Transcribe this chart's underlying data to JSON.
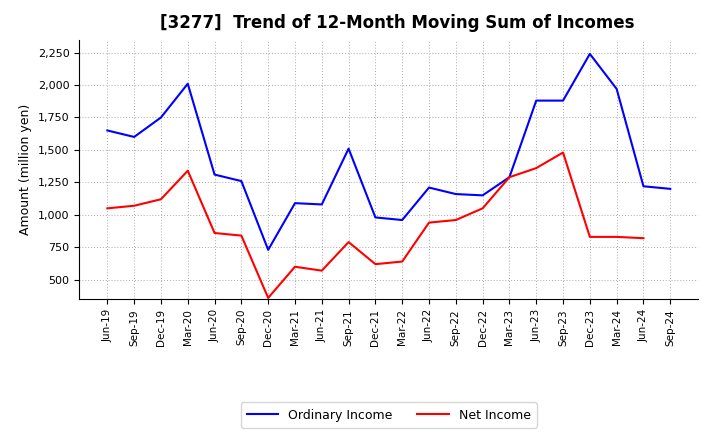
{
  "title": "[3277]  Trend of 12-Month Moving Sum of Incomes",
  "ylabel": "Amount (million yen)",
  "ylim": [
    350,
    2350
  ],
  "yticks": [
    500,
    750,
    1000,
    1250,
    1500,
    1750,
    2000,
    2250
  ],
  "labels": [
    "Jun-19",
    "Sep-19",
    "Dec-19",
    "Mar-20",
    "Jun-20",
    "Sep-20",
    "Dec-20",
    "Mar-21",
    "Jun-21",
    "Sep-21",
    "Dec-21",
    "Mar-22",
    "Jun-22",
    "Sep-22",
    "Dec-22",
    "Mar-23",
    "Jun-23",
    "Sep-23",
    "Dec-23",
    "Mar-24",
    "Jun-24",
    "Sep-24"
  ],
  "ordinary_income": [
    1650,
    1600,
    1750,
    2010,
    1310,
    1260,
    730,
    1090,
    1080,
    1510,
    980,
    960,
    1210,
    1160,
    1150,
    1290,
    1880,
    1880,
    2240,
    1970,
    1220,
    1200
  ],
  "net_income": [
    1050,
    1070,
    1120,
    1340,
    860,
    840,
    360,
    600,
    570,
    790,
    620,
    640,
    940,
    960,
    1050,
    1290,
    1360,
    1480,
    830,
    830,
    820,
    null
  ],
  "ordinary_color": "#0000FF",
  "net_color": "#FF0000",
  "background_color": "#FFFFFF",
  "grid_color": "#AAAAAA",
  "title_fontsize": 12,
  "legend_labels": [
    "Ordinary Income",
    "Net Income"
  ]
}
